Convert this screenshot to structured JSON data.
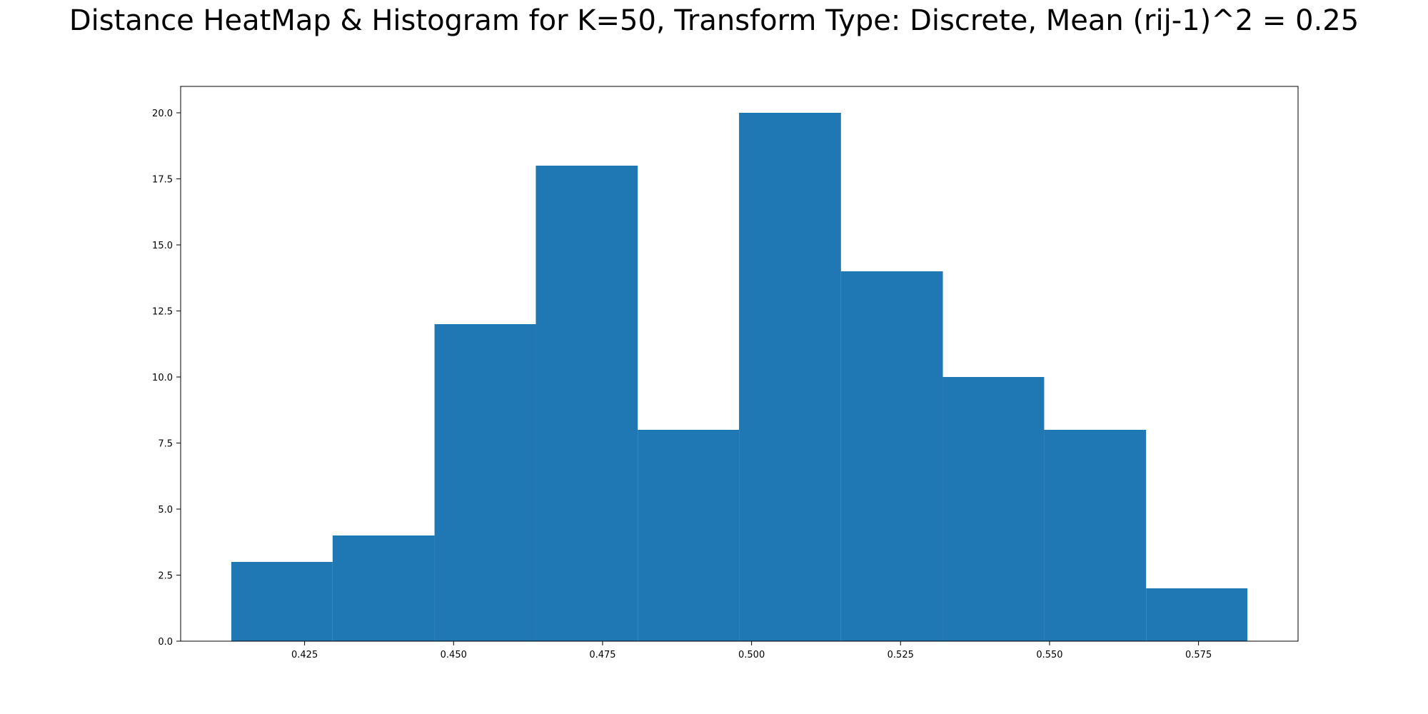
{
  "chart_data": {
    "type": "bar",
    "title": "Distance HeatMap & Histogram for K=50, Transform Type: Discrete, Mean (rij-1)^2 = 0.25",
    "xlabel": "",
    "ylabel": "",
    "bins": [
      {
        "x0": 0.4127,
        "x1": 0.4297,
        "count": 3
      },
      {
        "x0": 0.4297,
        "x1": 0.4468,
        "count": 4
      },
      {
        "x0": 0.4468,
        "x1": 0.4638,
        "count": 12
      },
      {
        "x0": 0.4638,
        "x1": 0.4809,
        "count": 18
      },
      {
        "x0": 0.4809,
        "x1": 0.4979,
        "count": 8
      },
      {
        "x0": 0.4979,
        "x1": 0.515,
        "count": 20
      },
      {
        "x0": 0.515,
        "x1": 0.5321,
        "count": 14
      },
      {
        "x0": 0.5321,
        "x1": 0.5491,
        "count": 10
      },
      {
        "x0": 0.5491,
        "x1": 0.5662,
        "count": 8
      },
      {
        "x0": 0.5662,
        "x1": 0.5832,
        "count": 2
      }
    ],
    "xlim": [
      0.4042,
      0.5917
    ],
    "ylim": [
      0,
      21
    ],
    "xticks": [
      "0.425",
      "0.450",
      "0.475",
      "0.500",
      "0.525",
      "0.550",
      "0.575"
    ],
    "yticks": [
      "0.0",
      "2.5",
      "5.0",
      "7.5",
      "10.0",
      "12.5",
      "15.0",
      "17.5",
      "20.0"
    ],
    "bar_color": "#1f77b4",
    "grid": false,
    "legend": "none"
  }
}
